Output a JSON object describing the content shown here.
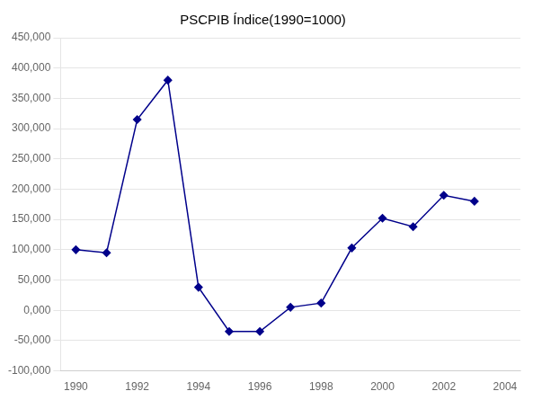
{
  "chart_data": {
    "type": "line",
    "title": "PSCPIB Índice(1990=1000)",
    "x": [
      1990,
      1991,
      1992,
      1993,
      1994,
      1995,
      1996,
      1997,
      1998,
      1999,
      2000,
      2001,
      2002,
      2003
    ],
    "values": [
      100000,
      95000,
      315000,
      380000,
      38000,
      -35000,
      -35000,
      5000,
      12000,
      103000,
      152000,
      138000,
      190000,
      180000
    ],
    "color": "#00008B",
    "marker": "diamond",
    "xlim": [
      1989.5,
      2004.5
    ],
    "xticks": [
      1990,
      1992,
      1994,
      1996,
      1998,
      2000,
      2002,
      2004
    ],
    "ylim": [
      -100000,
      450000
    ],
    "yticks": [
      {
        "value": -100000,
        "label": "-100,000"
      },
      {
        "value": -50000,
        "label": "-50,000"
      },
      {
        "value": 0,
        "label": "0,000"
      },
      {
        "value": 50000,
        "label": "50,000"
      },
      {
        "value": 100000,
        "label": "100,000"
      },
      {
        "value": 150000,
        "label": "150,000"
      },
      {
        "value": 200000,
        "label": "200,000"
      },
      {
        "value": 250000,
        "label": "250,000"
      },
      {
        "value": 300000,
        "label": "300,000"
      },
      {
        "value": 350000,
        "label": "350,000"
      },
      {
        "value": 400000,
        "label": "400,000"
      },
      {
        "value": 450000,
        "label": "450,000"
      }
    ],
    "grid": "y"
  }
}
